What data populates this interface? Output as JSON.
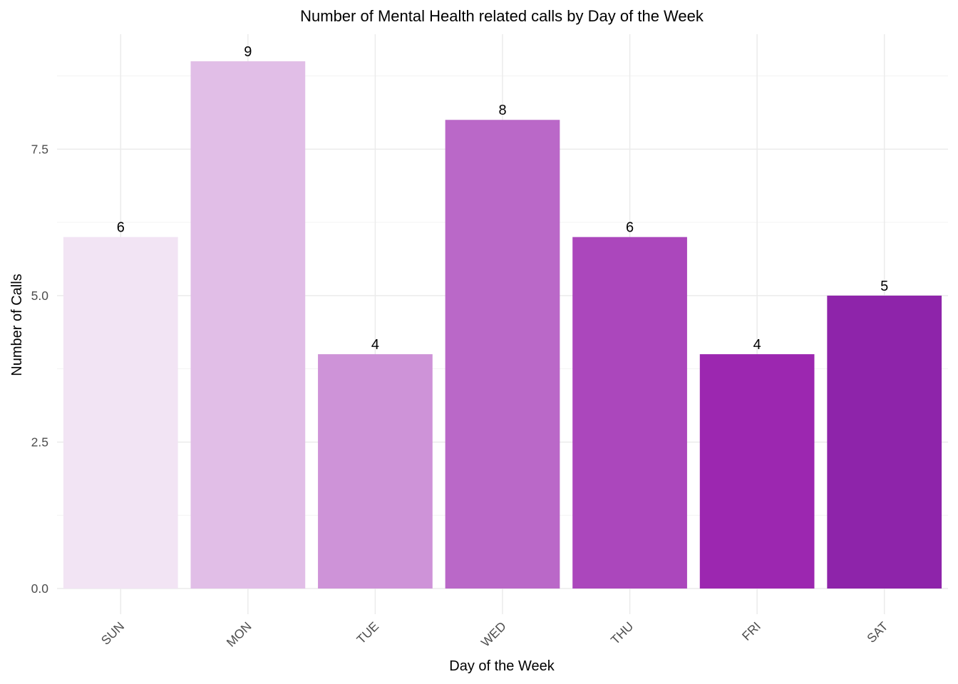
{
  "chart_data": {
    "type": "bar",
    "title": "Number of Mental Health related calls by Day of the Week",
    "xlabel": "Day of the Week",
    "ylabel": "Number of Calls",
    "categories": [
      "SUN",
      "MON",
      "TUE",
      "WED",
      "THU",
      "FRI",
      "SAT"
    ],
    "values": [
      6,
      9,
      4,
      8,
      6,
      4,
      5
    ],
    "colors": [
      "#F2E4F4",
      "#E1BEE7",
      "#CE93D8",
      "#BA68C8",
      "#AB47BC",
      "#9C27B0",
      "#8E24AA"
    ],
    "ylim": [
      0,
      9
    ],
    "yticks": [
      "0.0",
      "2.5",
      "5.0",
      "7.5"
    ],
    "ytick_values": [
      0,
      2.5,
      5,
      7.5
    ],
    "grid": true,
    "legend": "none",
    "data_labels": true
  }
}
